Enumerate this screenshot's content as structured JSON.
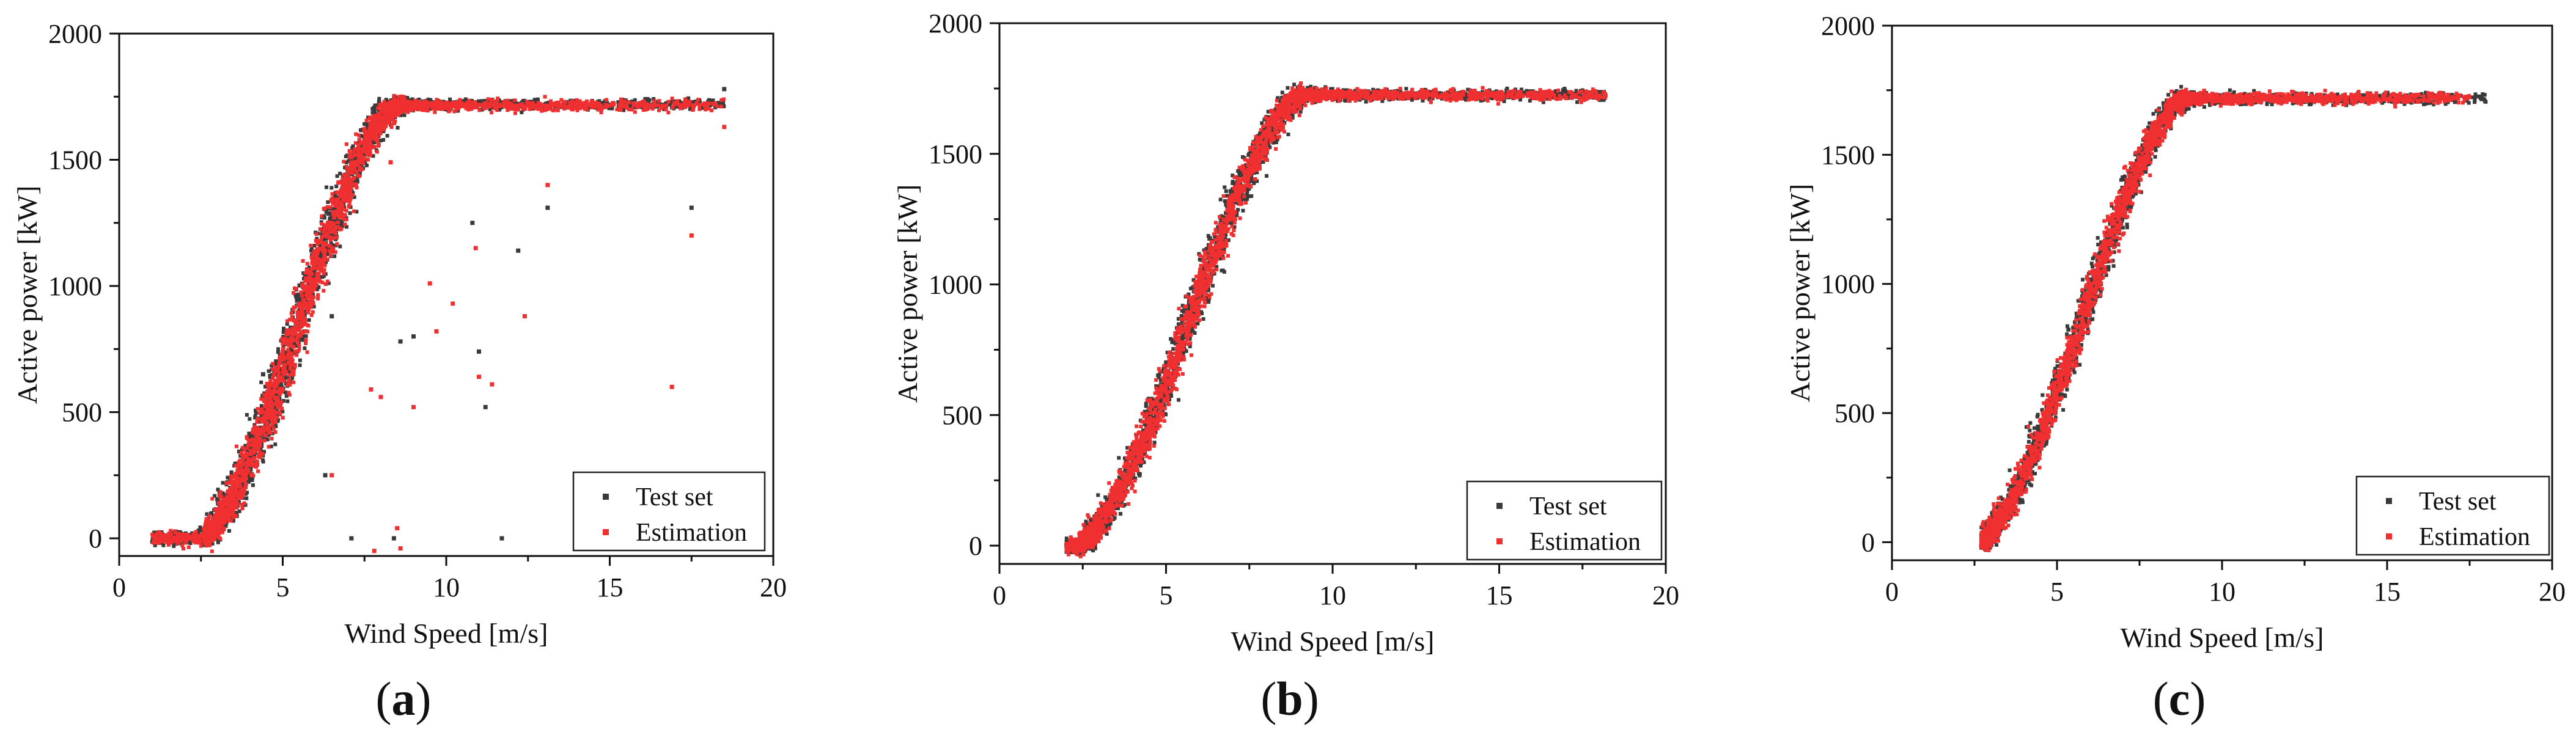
{
  "chart_data": [
    {
      "panel": "a",
      "caption_letter": "a",
      "type": "scatter",
      "xlabel": "Wind Speed [m/s]",
      "ylabel": "Active power [kW]",
      "xlim": [
        0,
        20
      ],
      "ylim": [
        -70,
        2000
      ],
      "xticks": [
        0,
        5,
        10,
        15,
        20
      ],
      "yticks": [
        0,
        500,
        1000,
        1500,
        2000
      ],
      "x_tick_labels": [
        "0",
        "5",
        "10",
        "15",
        "20"
      ],
      "y_tick_labels": [
        "0",
        "500",
        "1000",
        "1500",
        "2000"
      ],
      "legend": [
        "Test set",
        "Estimation"
      ],
      "legend_position": "bottom-right",
      "series": [
        {
          "name": "Test set",
          "color": "#3a3a3a",
          "curve": {
            "v_start": 1.0,
            "v_cut_in": 2.6,
            "v_rated": 8.4,
            "v_end": 18.5,
            "p_rated": 1720,
            "spread": 0.55
          },
          "outliers": [
            [
              4.4,
              650
            ],
            [
              6.3,
              250
            ],
            [
              8.6,
              780
            ],
            [
              9.0,
              800
            ],
            [
              10.8,
              1250
            ],
            [
              11.0,
              740
            ],
            [
              11.2,
              520
            ],
            [
              12.2,
              1140
            ],
            [
              13.1,
              1310
            ],
            [
              17.5,
              1310
            ],
            [
              18.5,
              1780
            ],
            [
              7.1,
              0
            ],
            [
              8.4,
              0
            ],
            [
              11.7,
              0
            ],
            [
              6.5,
              880
            ]
          ]
        },
        {
          "name": "Estimation",
          "color": "#f03030",
          "curve": {
            "v_start": 1.0,
            "v_cut_in": 2.6,
            "v_rated": 8.4,
            "v_end": 18.5,
            "p_rated": 1715,
            "spread": 0.5
          },
          "outliers": [
            [
              4.5,
              530
            ],
            [
              6.5,
              250
            ],
            [
              7.7,
              590
            ],
            [
              8.0,
              560
            ],
            [
              8.3,
              1490
            ],
            [
              9.0,
              520
            ],
            [
              9.5,
              1010
            ],
            [
              9.7,
              820
            ],
            [
              10.2,
              930
            ],
            [
              10.9,
              1150
            ],
            [
              11.0,
              640
            ],
            [
              11.4,
              610
            ],
            [
              12.4,
              880
            ],
            [
              13.1,
              1400
            ],
            [
              16.9,
              600
            ],
            [
              17.5,
              1200
            ],
            [
              18.5,
              1630
            ],
            [
              8.5,
              40
            ],
            [
              8.6,
              -40
            ],
            [
              7.8,
              -50
            ]
          ]
        }
      ]
    },
    {
      "panel": "b",
      "caption_letter": "b",
      "type": "scatter",
      "xlabel": "Wind Speed [m/s]",
      "ylabel": "Active power [kW]",
      "xlim": [
        0,
        20
      ],
      "ylim": [
        -70,
        2000
      ],
      "xticks": [
        0,
        5,
        10,
        15,
        20
      ],
      "yticks": [
        0,
        500,
        1000,
        1500,
        2000
      ],
      "x_tick_labels": [
        "0",
        "5",
        "10",
        "15",
        "20"
      ],
      "y_tick_labels": [
        "0",
        "500",
        "1000",
        "1500",
        "2000"
      ],
      "legend": [
        "Test set",
        "Estimation"
      ],
      "legend_position": "bottom-right",
      "series": [
        {
          "name": "Test set",
          "color": "#3a3a3a",
          "curve": {
            "v_start": 2.0,
            "v_cut_in": 2.4,
            "v_rated": 9.0,
            "v_end": 18.2,
            "p_rated": 1725,
            "spread": 0.45
          },
          "outliers": []
        },
        {
          "name": "Estimation",
          "color": "#f03030",
          "curve": {
            "v_start": 2.0,
            "v_cut_in": 2.4,
            "v_rated": 9.0,
            "v_end": 18.2,
            "p_rated": 1725,
            "spread": 0.4
          },
          "outliers": []
        }
      ]
    },
    {
      "panel": "c",
      "caption_letter": "c",
      "type": "scatter",
      "xlabel": "Wind Speed [m/s]",
      "ylabel": "Active power [kW]",
      "xlim": [
        0,
        20
      ],
      "ylim": [
        -70,
        2000
      ],
      "xticks": [
        0,
        5,
        10,
        15,
        20
      ],
      "yticks": [
        0,
        500,
        1000,
        1500,
        2000
      ],
      "x_tick_labels": [
        "0",
        "5",
        "10",
        "15",
        "20"
      ],
      "y_tick_labels": [
        "0",
        "500",
        "1000",
        "1500",
        "2000"
      ],
      "legend": [
        "Test set",
        "Estimation"
      ],
      "legend_position": "bottom-right",
      "series": [
        {
          "name": "Test set",
          "color": "#3a3a3a",
          "curve": {
            "v_start": 2.7,
            "v_cut_in": 2.7,
            "v_rated": 8.8,
            "v_end": 18.0,
            "p_rated": 1718,
            "spread": 0.4
          },
          "outliers": []
        },
        {
          "name": "Estimation",
          "color": "#f03030",
          "curve": {
            "v_start": 2.7,
            "v_cut_in": 2.7,
            "v_rated": 8.8,
            "v_end": 17.5,
            "p_rated": 1718,
            "spread": 0.35
          },
          "outliers": []
        }
      ]
    }
  ]
}
